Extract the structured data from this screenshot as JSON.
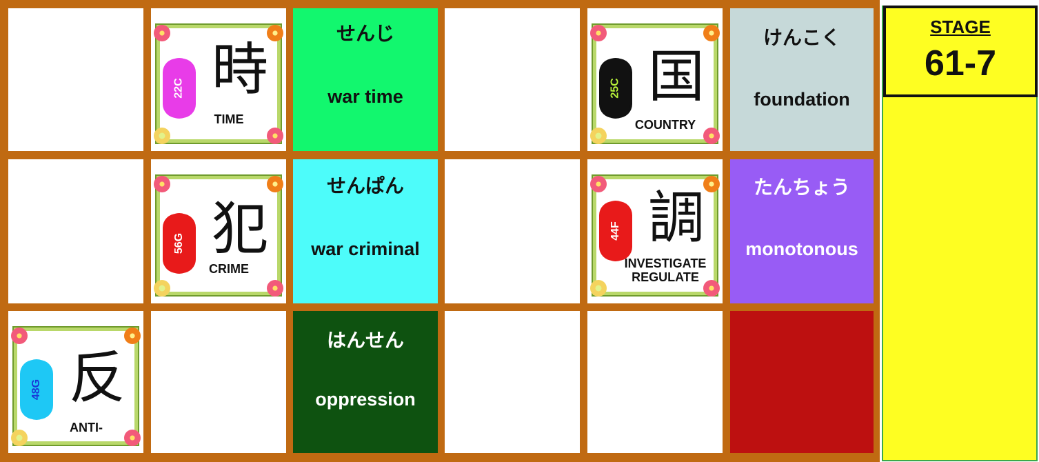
{
  "stage": {
    "label": "STAGE",
    "number": "61-7"
  },
  "cards": {
    "time": {
      "kanji": "時",
      "meaning": "TIME",
      "code": "22C",
      "code_color": "#e83ce8",
      "code_text_color": "#ffffff"
    },
    "country": {
      "kanji": "国",
      "meaning": "COUNTRY",
      "code": "25C",
      "code_color": "#111111",
      "code_text_color": "#b8f23a"
    },
    "crime": {
      "kanji": "犯",
      "meaning": "CRIME",
      "code": "56G",
      "code_color": "#e81a1a",
      "code_text_color": "#ffffff"
    },
    "investigate": {
      "kanji": "調",
      "meaning_line1": "INVESTIGATE",
      "meaning_line2": "REGULATE",
      "code": "44F",
      "code_color": "#e81a1a",
      "code_text_color": "#ffffff"
    },
    "anti": {
      "kanji": "反",
      "meaning": "ANTI-",
      "code": "48G",
      "code_color": "#1ec8f5",
      "code_text_color": "#1a3ad8"
    }
  },
  "words": {
    "senji": {
      "reading": "せんじ",
      "meaning": "war time",
      "bg": "#12f76e",
      "color": "#111111"
    },
    "kenkoku": {
      "reading": "けんこく",
      "meaning": "foundation",
      "bg": "#c6d9d9",
      "color": "#111111"
    },
    "senpan": {
      "reading": "せんぱん",
      "meaning": "war criminal",
      "bg": "#4dfcfa",
      "color": "#111111"
    },
    "tanchou": {
      "reading": "たんちょう",
      "meaning": "monotonous",
      "bg": "#985cf5",
      "color": "#ffffff"
    },
    "hansen": {
      "reading": "はんせん",
      "meaning": "oppression",
      "bg": "#0e5210",
      "color": "#ffffff"
    }
  },
  "colors": {
    "board": "#c06a12",
    "red_tile": "#bd1010",
    "panel": "#fefe22"
  }
}
